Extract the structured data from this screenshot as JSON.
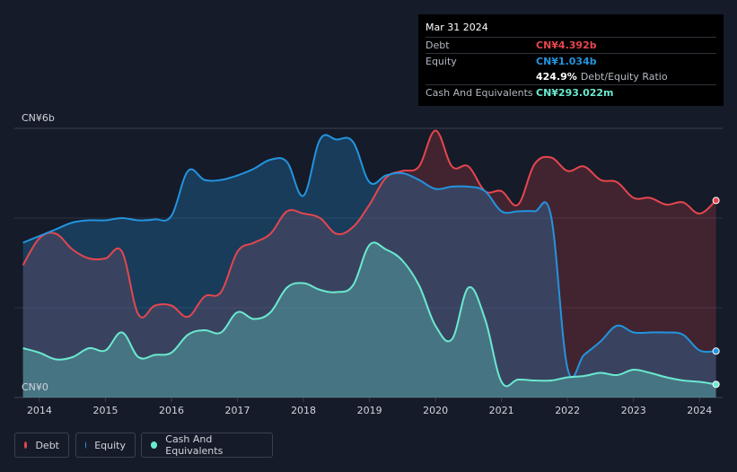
{
  "tooltip": {
    "date": "Mar 31 2024",
    "debt_label": "Debt",
    "debt_value": "CN¥4.392b",
    "equity_label": "Equity",
    "equity_value": "CN¥1.034b",
    "ratio_value": "424.9%",
    "ratio_label": "Debt/Equity Ratio",
    "cash_label": "Cash And Equivalents",
    "cash_value": "CN¥293.022m"
  },
  "legend": {
    "debt": "Debt",
    "equity": "Equity",
    "cash": "Cash And Equivalents"
  },
  "colors": {
    "debt": "#e5464f",
    "equity": "#2394df",
    "cash": "#6ae9d0",
    "background": "#151b28",
    "grid": "#3a4050"
  },
  "chart_data": {
    "type": "area",
    "title": "",
    "xlabel": "",
    "ylabel": "",
    "y_label_top": "CN¥6b",
    "y_label_bottom": "CN¥0",
    "ylim": [
      0,
      6
    ],
    "xlim": [
      2013.62,
      2024.35
    ],
    "x_ticks": [
      "2014",
      "2015",
      "2016",
      "2017",
      "2018",
      "2019",
      "2020",
      "2021",
      "2022",
      "2023",
      "2024"
    ],
    "series": [
      {
        "name": "Debt",
        "x": [
          2013.75,
          2014.0,
          2014.25,
          2014.5,
          2014.75,
          2015.0,
          2015.25,
          2015.5,
          2015.75,
          2016.0,
          2016.25,
          2016.5,
          2016.75,
          2017.0,
          2017.25,
          2017.5,
          2017.75,
          2018.0,
          2018.25,
          2018.5,
          2018.75,
          2019.0,
          2019.25,
          2019.5,
          2019.75,
          2020.0,
          2020.25,
          2020.5,
          2020.75,
          2021.0,
          2021.25,
          2021.5,
          2021.75,
          2022.0,
          2022.25,
          2022.5,
          2022.75,
          2023.0,
          2023.25,
          2023.5,
          2023.75,
          2024.0,
          2024.25
        ],
        "values": [
          2.95,
          3.55,
          3.65,
          3.3,
          3.1,
          3.1,
          3.25,
          1.85,
          2.05,
          2.05,
          1.8,
          2.25,
          2.35,
          3.25,
          3.45,
          3.65,
          4.15,
          4.1,
          4.0,
          3.65,
          3.8,
          4.3,
          4.9,
          5.05,
          5.15,
          5.95,
          5.15,
          5.15,
          4.6,
          4.6,
          4.3,
          5.2,
          5.35,
          5.05,
          5.15,
          4.85,
          4.8,
          4.45,
          4.45,
          4.3,
          4.35,
          4.1,
          4.392
        ]
      },
      {
        "name": "Equity",
        "x": [
          2013.75,
          2014.0,
          2014.25,
          2014.5,
          2014.75,
          2015.0,
          2015.25,
          2015.5,
          2015.75,
          2016.0,
          2016.25,
          2016.5,
          2016.75,
          2017.0,
          2017.25,
          2017.5,
          2017.75,
          2018.0,
          2018.25,
          2018.5,
          2018.75,
          2019.0,
          2019.25,
          2019.5,
          2019.75,
          2020.0,
          2020.25,
          2020.5,
          2020.75,
          2021.0,
          2021.25,
          2021.5,
          2021.75,
          2022.0,
          2022.25,
          2022.5,
          2022.75,
          2023.0,
          2023.25,
          2023.5,
          2023.75,
          2024.0,
          2024.25
        ],
        "values": [
          3.45,
          3.6,
          3.75,
          3.9,
          3.95,
          3.95,
          4.0,
          3.95,
          3.97,
          4.05,
          5.05,
          4.85,
          4.85,
          4.95,
          5.1,
          5.3,
          5.25,
          4.5,
          5.75,
          5.75,
          5.7,
          4.8,
          4.95,
          5.0,
          4.85,
          4.65,
          4.7,
          4.7,
          4.6,
          4.15,
          4.15,
          4.15,
          4.05,
          0.65,
          0.95,
          1.25,
          1.6,
          1.45,
          1.45,
          1.45,
          1.4,
          1.05,
          1.034
        ]
      },
      {
        "name": "Cash And Equivalents",
        "x": [
          2013.75,
          2014.0,
          2014.25,
          2014.5,
          2014.75,
          2015.0,
          2015.25,
          2015.5,
          2015.75,
          2016.0,
          2016.25,
          2016.5,
          2016.75,
          2017.0,
          2017.25,
          2017.5,
          2017.75,
          2018.0,
          2018.25,
          2018.5,
          2018.75,
          2019.0,
          2019.25,
          2019.5,
          2019.75,
          2020.0,
          2020.25,
          2020.5,
          2020.75,
          2021.0,
          2021.25,
          2021.5,
          2021.75,
          2022.0,
          2022.25,
          2022.5,
          2022.75,
          2023.0,
          2023.25,
          2023.5,
          2023.75,
          2024.0,
          2024.25
        ],
        "values": [
          1.1,
          1.0,
          0.85,
          0.9,
          1.1,
          1.05,
          1.45,
          0.9,
          0.95,
          1.0,
          1.4,
          1.5,
          1.45,
          1.9,
          1.75,
          1.9,
          2.45,
          2.55,
          2.4,
          2.35,
          2.5,
          3.4,
          3.3,
          3.05,
          2.5,
          1.6,
          1.3,
          2.45,
          1.75,
          0.35,
          0.4,
          0.38,
          0.38,
          0.45,
          0.48,
          0.55,
          0.5,
          0.62,
          0.55,
          0.45,
          0.38,
          0.35,
          0.293
        ]
      }
    ]
  }
}
